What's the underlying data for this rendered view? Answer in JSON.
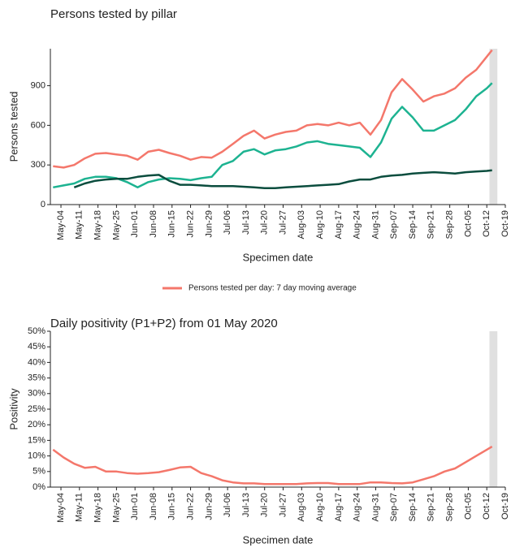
{
  "chart_data": [
    {
      "type": "line",
      "title": "Persons tested by pillar",
      "xlabel": "Specimen date",
      "ylabel": "Persons tested",
      "x": [
        "May-01",
        "May-05",
        "May-09",
        "May-13",
        "May-17",
        "May-21",
        "May-25",
        "May-29",
        "Jun-02",
        "Jun-06",
        "Jun-10",
        "Jun-14",
        "Jun-18",
        "Jun-22",
        "Jun-26",
        "Jun-30",
        "Jul-04",
        "Jul-08",
        "Jul-12",
        "Jul-16",
        "Jul-20",
        "Jul-24",
        "Jul-28",
        "Aug-01",
        "Aug-05",
        "Aug-09",
        "Aug-13",
        "Aug-17",
        "Aug-21",
        "Aug-25",
        "Aug-29",
        "Sep-02",
        "Sep-06",
        "Sep-10",
        "Sep-14",
        "Sep-18",
        "Sep-22",
        "Sep-26",
        "Sep-30",
        "Oct-04",
        "Oct-08",
        "Oct-12",
        "Oct-14"
      ],
      "series": [
        {
          "name": "Persons tested per day: 7 day moving average",
          "color": "#f4776b",
          "values": [
            290,
            280,
            300,
            350,
            385,
            390,
            380,
            370,
            340,
            400,
            415,
            390,
            370,
            340,
            360,
            355,
            400,
            460,
            520,
            560,
            500,
            530,
            550,
            560,
            600,
            610,
            600,
            620,
            600,
            620,
            530,
            640,
            850,
            950,
            870,
            780,
            820,
            840,
            880,
            960,
            1020,
            1120,
            1170
          ]
        },
        {
          "color": "#1db391",
          "values": [
            130,
            145,
            160,
            195,
            210,
            210,
            200,
            170,
            130,
            170,
            190,
            200,
            195,
            185,
            200,
            210,
            300,
            330,
            400,
            420,
            380,
            410,
            420,
            440,
            470,
            480,
            460,
            450,
            440,
            430,
            360,
            470,
            650,
            740,
            660,
            560,
            560,
            600,
            640,
            720,
            820,
            880,
            920
          ]
        },
        {
          "color": "#0b4d3e",
          "values": [
            null,
            null,
            130,
            160,
            180,
            190,
            195,
            195,
            210,
            220,
            225,
            180,
            150,
            150,
            145,
            140,
            140,
            140,
            135,
            130,
            125,
            125,
            130,
            135,
            140,
            145,
            150,
            155,
            175,
            190,
            190,
            210,
            220,
            225,
            235,
            240,
            245,
            240,
            235,
            245,
            250,
            255,
            260
          ]
        }
      ],
      "xlim": [
        "Apr-30",
        "Oct-19"
      ],
      "xticks": [
        "May-04",
        "May-11",
        "May-18",
        "May-25",
        "Jun-01",
        "Jun-08",
        "Jun-15",
        "Jun-22",
        "Jun-29",
        "Jul-06",
        "Jul-13",
        "Jul-20",
        "Jul-27",
        "Aug-03",
        "Aug-10",
        "Aug-17",
        "Aug-24",
        "Aug-31",
        "Sep-07",
        "Sep-14",
        "Sep-21",
        "Sep-28",
        "Oct-05",
        "Oct-12",
        "Oct-19"
      ],
      "ylim": [
        0,
        1180
      ],
      "yticks": [
        0,
        300,
        600,
        900
      ],
      "shaded": [
        "Oct-13",
        "Oct-16"
      ],
      "legend": "bottom"
    },
    {
      "type": "line",
      "title": "Daily positivity (P1+P2) from 01 May 2020",
      "xlabel": "Specimen date",
      "ylabel": "Positivity",
      "x": [
        "May-01",
        "May-05",
        "May-09",
        "May-13",
        "May-17",
        "May-21",
        "May-25",
        "May-29",
        "Jun-02",
        "Jun-06",
        "Jun-10",
        "Jun-14",
        "Jun-18",
        "Jun-22",
        "Jun-26",
        "Jun-30",
        "Jul-04",
        "Jul-08",
        "Jul-12",
        "Jul-16",
        "Jul-20",
        "Jul-24",
        "Jul-28",
        "Aug-01",
        "Aug-05",
        "Aug-09",
        "Aug-13",
        "Aug-17",
        "Aug-21",
        "Aug-25",
        "Aug-29",
        "Sep-02",
        "Sep-06",
        "Sep-10",
        "Sep-14",
        "Sep-18",
        "Sep-22",
        "Sep-26",
        "Sep-30",
        "Oct-04",
        "Oct-08",
        "Oct-12",
        "Oct-14"
      ],
      "series": [
        {
          "color": "#f4776b",
          "values": [
            12,
            9.5,
            7.5,
            6.2,
            6.5,
            5,
            5,
            4.5,
            4.3,
            4.5,
            4.8,
            5.5,
            6.3,
            6.5,
            4.5,
            3.5,
            2.2,
            1.5,
            1.2,
            1.2,
            1,
            1,
            1,
            1,
            1.2,
            1.3,
            1.3,
            1,
            1,
            1,
            1.5,
            1.5,
            1.3,
            1.2,
            1.5,
            2.5,
            3.5,
            5,
            6,
            8,
            10,
            12,
            13
          ]
        }
      ],
      "xlim": [
        "Apr-30",
        "Oct-19"
      ],
      "xticks": [
        "May-04",
        "May-11",
        "May-18",
        "May-25",
        "Jun-01",
        "Jun-08",
        "Jun-15",
        "Jun-22",
        "Jun-29",
        "Jul-06",
        "Jul-13",
        "Jul-20",
        "Jul-27",
        "Aug-03",
        "Aug-10",
        "Aug-17",
        "Aug-24",
        "Aug-31",
        "Sep-07",
        "Sep-14",
        "Sep-21",
        "Sep-28",
        "Oct-05",
        "Oct-12",
        "Oct-19"
      ],
      "ylim": [
        0,
        50
      ],
      "yticks": [
        {
          "value": 0,
          "label": "0%"
        },
        {
          "value": 5,
          "label": "5%"
        },
        {
          "value": 10,
          "label": "10%"
        },
        {
          "value": 15,
          "label": "15%"
        },
        {
          "value": 20,
          "label": "20%"
        },
        {
          "value": 25,
          "label": "25%"
        },
        {
          "value": 30,
          "label": "30%"
        },
        {
          "value": 35,
          "label": "35%"
        },
        {
          "value": 40,
          "label": "40%"
        },
        {
          "value": 45,
          "label": "45%"
        },
        {
          "value": 50,
          "label": "50%"
        }
      ],
      "shaded": [
        "Oct-13",
        "Oct-16"
      ]
    }
  ]
}
